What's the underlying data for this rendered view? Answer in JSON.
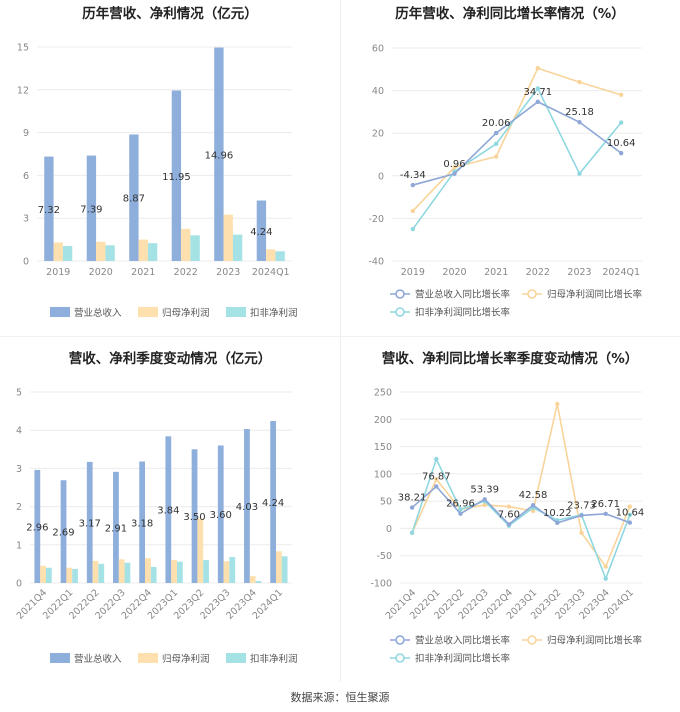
{
  "colors": {
    "revenue": "#8eaedb",
    "netprofit": "#fde0ad",
    "deducted": "#a5e2e6",
    "rev_line": "#8ea7d6",
    "np_line": "#f9d49a",
    "ded_line": "#8fd8e0"
  },
  "source": "数据来源：恒生聚源",
  "chart_data": [
    {
      "id": "annual-bar",
      "type": "bar",
      "title": "历年营收、净利情况（亿元）",
      "categories": [
        "2019",
        "2020",
        "2021",
        "2022",
        "2023",
        "2024Q1"
      ],
      "ylim": [
        0,
        15
      ],
      "yticks": [
        0,
        3,
        6,
        9,
        12,
        15
      ],
      "series": [
        {
          "name": "营业总收入",
          "values": [
            7.32,
            7.39,
            8.87,
            11.95,
            14.96,
            4.24
          ],
          "labels": [
            "7.32",
            "7.39",
            "8.87",
            "11.95",
            "14.96",
            "4.24"
          ]
        },
        {
          "name": "归母净利润",
          "values": [
            1.3,
            1.35,
            1.5,
            2.25,
            3.25,
            0.82
          ],
          "labels": []
        },
        {
          "name": "扣非净利润",
          "values": [
            1.05,
            1.1,
            1.25,
            1.8,
            1.85,
            0.68
          ],
          "labels": []
        }
      ]
    },
    {
      "id": "annual-line",
      "type": "line",
      "title": "历年营收、净利同比增长率情况（%）",
      "categories": [
        "2019",
        "2020",
        "2021",
        "2022",
        "2023",
        "2024Q1"
      ],
      "ylim": [
        -40,
        60
      ],
      "yticks": [
        -40,
        -20,
        0,
        20,
        40,
        60
      ],
      "series": [
        {
          "name": "营业总收入同比增长率",
          "values": [
            -4.34,
            0.96,
            20.06,
            34.71,
            25.18,
            10.64
          ],
          "labels": [
            "-4.34",
            "0.96",
            "20.06",
            "34.71",
            "25.18",
            "10.64"
          ]
        },
        {
          "name": "归母净利润同比增长率",
          "values": [
            -16.5,
            4.0,
            9.0,
            50.5,
            44.0,
            38.0
          ],
          "labels": []
        },
        {
          "name": "扣非净利润同比增长率",
          "values": [
            -25.0,
            2.0,
            15.0,
            41.0,
            1.0,
            25.0
          ],
          "labels": []
        }
      ]
    },
    {
      "id": "quarter-bar",
      "type": "bar",
      "title": "营收、净利季度变动情况（亿元）",
      "categories": [
        "2021Q4",
        "2022Q1",
        "2022Q2",
        "2022Q3",
        "2022Q4",
        "2023Q1",
        "2023Q2",
        "2023Q3",
        "2023Q4",
        "2024Q1"
      ],
      "ylim": [
        0,
        5
      ],
      "yticks": [
        0,
        1,
        2,
        3,
        4,
        5
      ],
      "series": [
        {
          "name": "营业总收入",
          "values": [
            2.96,
            2.69,
            3.17,
            2.91,
            3.18,
            3.84,
            3.5,
            3.6,
            4.03,
            4.24
          ],
          "labels": [
            "2.96",
            "2.69",
            "3.17",
            "2.91",
            "3.18",
            "3.84",
            "3.50",
            "3.60",
            "4.03",
            "4.24"
          ]
        },
        {
          "name": "归母净利润",
          "values": [
            0.45,
            0.4,
            0.58,
            0.62,
            0.65,
            0.6,
            1.68,
            0.57,
            0.18,
            0.83
          ],
          "labels": []
        },
        {
          "name": "扣非净利润",
          "values": [
            0.4,
            0.37,
            0.5,
            0.53,
            0.42,
            0.56,
            0.6,
            0.68,
            0.05,
            0.7
          ],
          "labels": []
        }
      ]
    },
    {
      "id": "quarter-line",
      "type": "line",
      "title": "营收、净利同比增长率季度变动情况（%）",
      "categories": [
        "2021Q4",
        "2022Q1",
        "2022Q2",
        "2022Q3",
        "2022Q4",
        "2023Q1",
        "2023Q2",
        "2023Q3",
        "2023Q4",
        "2024Q1"
      ],
      "ylim": [
        -100,
        250
      ],
      "yticks": [
        -100,
        -50,
        0,
        50,
        100,
        150,
        200,
        250
      ],
      "series": [
        {
          "name": "营业总收入同比增长率",
          "values": [
            38.21,
            76.87,
            26.96,
            53.39,
            7.6,
            42.58,
            10.22,
            23.73,
            26.71,
            10.64
          ],
          "labels": [
            "38.21",
            "76.87",
            "26.96",
            "53.39",
            "7.60",
            "42.58",
            "10.22",
            "23.73",
            "26.71",
            "10.64"
          ]
        },
        {
          "name": "归母净利润同比增长率",
          "values": [
            -8,
            90,
            35,
            43,
            40,
            32,
            228,
            -8,
            -70,
            40
          ],
          "labels": []
        },
        {
          "name": "扣非净利润同比增长率",
          "values": [
            -8,
            127,
            35,
            50,
            5,
            38,
            15,
            25,
            -92,
            25
          ],
          "labels": []
        }
      ]
    }
  ]
}
